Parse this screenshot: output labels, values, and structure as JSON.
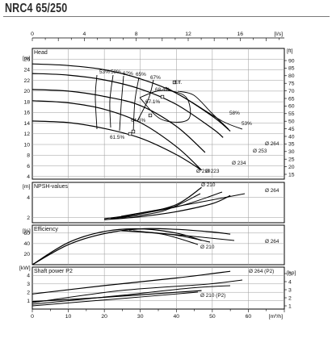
{
  "title": "NRC4 65/250",
  "chart_data": [
    {
      "type": "line",
      "panel": "head",
      "title": "Head",
      "yunit_left": "[m]",
      "yunit_right": "[ft]",
      "xunit_top": "[l/s]",
      "x_top_ticks": [
        "0",
        "4",
        "8",
        "12",
        "16"
      ],
      "y_ticks": [
        "4",
        "6",
        "8",
        "10",
        "12",
        "14",
        "16",
        "18",
        "20",
        "22",
        "24",
        "26"
      ],
      "y_ticks_right": [
        "15",
        "20",
        "25",
        "30",
        "35",
        "40",
        "45",
        "50",
        "55",
        "60",
        "65",
        "70",
        "75",
        "80",
        "85",
        "90"
      ],
      "xlim": [
        0,
        70
      ],
      "ylim": [
        3.5,
        28
      ],
      "series": [
        {
          "name": "Ø 264",
          "x": [
            0,
            10,
            20,
            30,
            40,
            50,
            55
          ],
          "y": [
            25.1,
            24.8,
            24,
            22.3,
            19.6,
            15.3,
            12.5
          ]
        },
        {
          "name": "Ø 253",
          "x": [
            0,
            10,
            20,
            30,
            40,
            50,
            53
          ],
          "y": [
            23.3,
            23,
            22.1,
            20.4,
            17.5,
            13,
            11.3
          ]
        },
        {
          "name": "Ø 234",
          "x": [
            0,
            10,
            20,
            30,
            40,
            48
          ],
          "y": [
            20.3,
            20,
            19,
            17.3,
            13.4,
            8.5
          ]
        },
        {
          "name": "Ø 223",
          "x": [
            0,
            10,
            20,
            30,
            40,
            47
          ],
          "y": [
            18.2,
            17.8,
            16.6,
            14.1,
            9.6,
            5.2
          ]
        },
        {
          "name": "Ø 210",
          "x": [
            0,
            10,
            20,
            30,
            40,
            47
          ],
          "y": [
            14.4,
            14.1,
            13,
            11.2,
            8.1,
            5.2
          ]
        }
      ],
      "efficiency_labels": [
        "53%",
        "58%",
        "62%",
        "65%",
        "67%",
        "Eff.",
        "68.4%",
        "67.1%",
        "64.5%",
        "61.5%",
        "58%",
        "53%"
      ],
      "diameter_labels": [
        "Ø 264",
        "Ø 253",
        "Ø 234",
        "Ø 223",
        "Ø 210"
      ]
    },
    {
      "type": "line",
      "panel": "npsh",
      "title": "NPSH-values",
      "yunit_left": "[m]",
      "y_ticks": [
        "2",
        "4"
      ],
      "xlim": [
        0,
        70
      ],
      "ylim": [
        1.5,
        5.5
      ],
      "series": [
        {
          "name": "Ø 210",
          "x": [
            20,
            30,
            40,
            47
          ],
          "y": [
            1.9,
            2.4,
            3.3,
            5
          ]
        },
        {
          "name": "Ø 264",
          "x": [
            20,
            30,
            40,
            50,
            55
          ],
          "y": [
            1.8,
            2.1,
            2.6,
            3.4,
            4.2
          ]
        }
      ],
      "diameter_labels": [
        "Ø 210",
        "Ø 264"
      ]
    },
    {
      "type": "line",
      "panel": "efficiency",
      "title": "Efficiency",
      "yunit_left": "[%]",
      "y_ticks": [
        "20",
        "40",
        "60"
      ],
      "xlim": [
        0,
        70
      ],
      "ylim": [
        0,
        75
      ],
      "series": [
        {
          "name": "Ø 264",
          "x": [
            0,
            10,
            20,
            30,
            40,
            50,
            55
          ],
          "y": [
            0,
            38,
            59,
            68,
            67,
            62,
            58
          ]
        },
        {
          "name": "Ø 210",
          "x": [
            0,
            10,
            20,
            30,
            40,
            47
          ],
          "y": [
            0,
            42,
            63,
            68,
            60,
            46
          ]
        }
      ],
      "diameter_labels": [
        "Ø 264",
        "Ø 210"
      ]
    },
    {
      "type": "line",
      "panel": "power",
      "title": "Shaft power P2",
      "yunit_left": "[kW]",
      "yunit_right": "[hp]",
      "xunit_bottom": "[m³/h]",
      "y_ticks": [
        "1",
        "2",
        "3",
        "4"
      ],
      "y_ticks_right": [
        "1",
        "2",
        "3",
        "4",
        "5"
      ],
      "x_bottom_ticks": [
        "0",
        "10",
        "20",
        "30",
        "40",
        "50",
        "60"
      ],
      "xlim": [
        0,
        70
      ],
      "ylim": [
        0,
        5
      ],
      "series": [
        {
          "name": "Ø 264 (P2)",
          "x": [
            0,
            20,
            40,
            55
          ],
          "y": [
            1.8,
            2.8,
            3.7,
            4.5
          ]
        },
        {
          "name": "Ø 210 (P2)",
          "x": [
            0,
            20,
            40,
            47
          ],
          "y": [
            0.9,
            1.4,
            2,
            2.2
          ]
        }
      ],
      "diameter_labels": [
        "Ø 264 (P2)",
        "Ø 210 (P2)"
      ]
    }
  ]
}
